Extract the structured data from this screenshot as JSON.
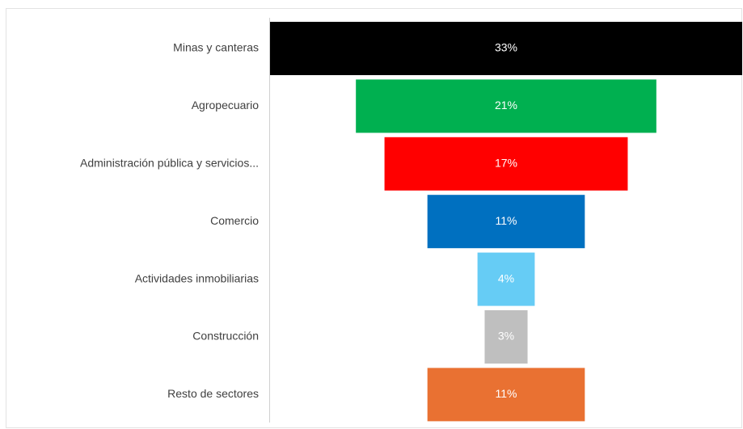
{
  "chart_data": {
    "type": "funnel",
    "categories": [
      "Minas y canteras",
      "Agropecuario",
      "Administración pública y servicios...",
      "Comercio",
      "Actividades inmobiliarias",
      "Construcción",
      "Resto de sectores"
    ],
    "values": [
      33,
      21,
      17,
      11,
      4,
      3,
      11
    ],
    "value_labels": [
      "33%",
      "21%",
      "17%",
      "11%",
      "4%",
      "3%",
      "11%"
    ],
    "colors": [
      "#000000",
      "#00b050",
      "#ff0000",
      "#0070c0",
      "#66ccf5",
      "#bfbfbf",
      "#e97132"
    ]
  }
}
